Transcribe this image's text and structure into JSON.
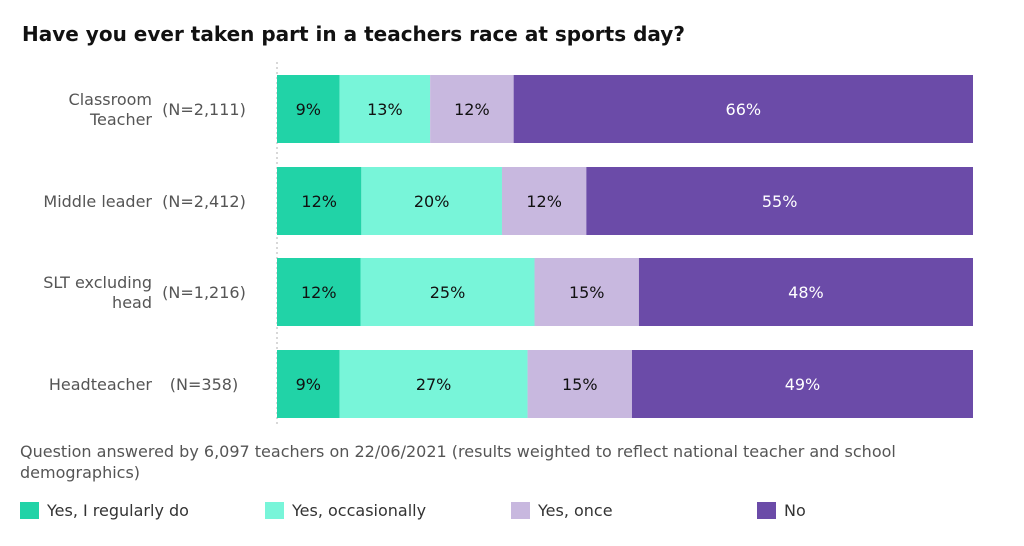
{
  "chart_data": {
    "type": "bar",
    "orientation": "horizontal",
    "stacked": true,
    "title": "Have you ever taken part in a teachers race at sports day?",
    "categories": [
      {
        "label": "Classroom Teacher",
        "n": "(N=2,111)"
      },
      {
        "label": "Middle leader",
        "n": "(N=2,412)"
      },
      {
        "label": "SLT excluding head",
        "n": "(N=1,216)"
      },
      {
        "label": "Headteacher",
        "n": "(N=358)"
      }
    ],
    "series": [
      {
        "name": "Yes, I regularly do",
        "color": "#21d3a7",
        "label_color": "#111111",
        "values": [
          9,
          12,
          12,
          9
        ]
      },
      {
        "name": "Yes, occasionally",
        "color": "#78f5d9",
        "label_color": "#111111",
        "values": [
          13,
          20,
          25,
          27
        ]
      },
      {
        "name": "Yes, once",
        "color": "#c8b8df",
        "label_color": "#111111",
        "values": [
          12,
          12,
          15,
          15
        ]
      },
      {
        "name": "No",
        "color": "#6b4ba8",
        "label_color": "#ffffff",
        "values": [
          66,
          55,
          48,
          49
        ]
      }
    ],
    "value_suffix": "%",
    "legend_position": "bottom",
    "grid": false
  },
  "footnote": "Question answered by 6,097 teachers on 22/06/2021 (results weighted to reflect national teacher and school demographics)"
}
